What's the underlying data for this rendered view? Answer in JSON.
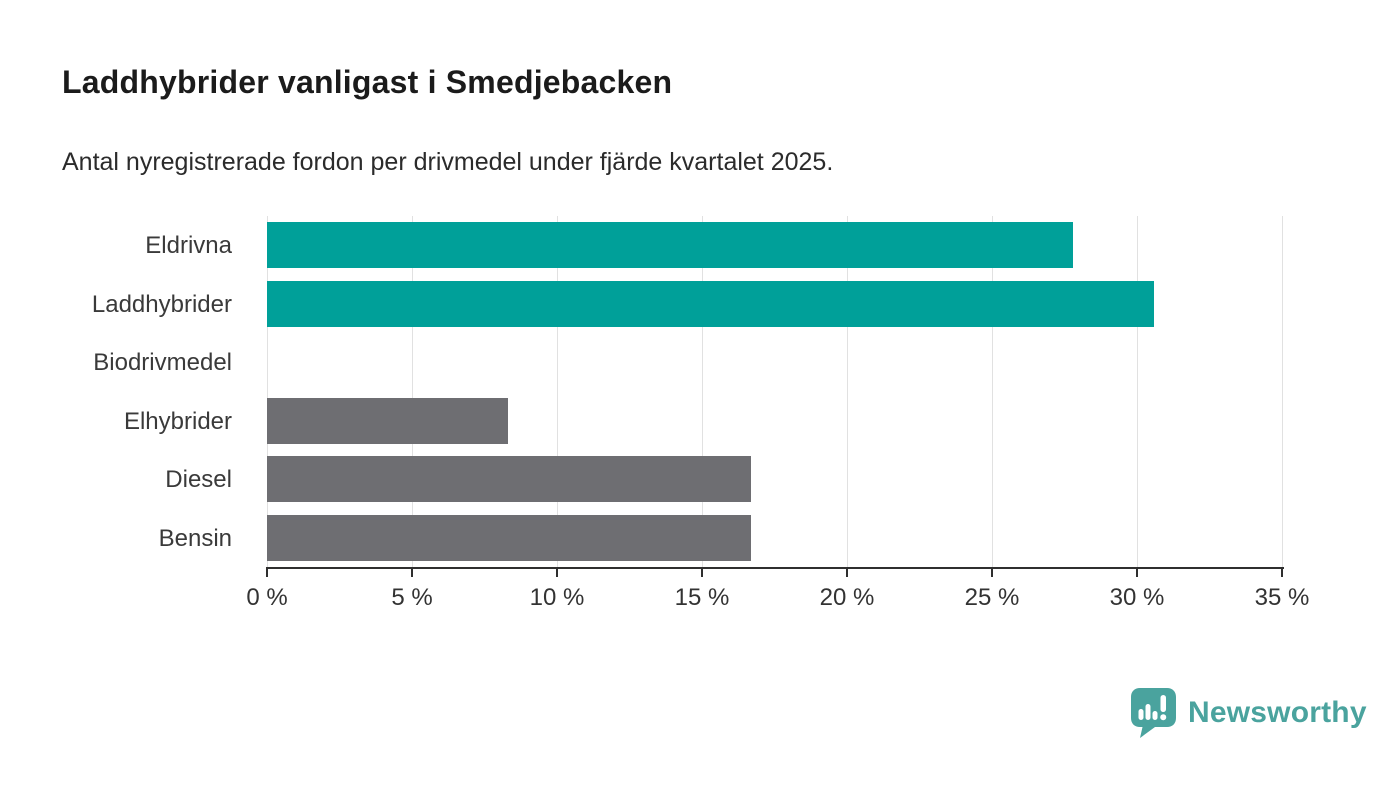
{
  "header": {
    "title": "Laddhybrider vanligast i Smedjebacken",
    "subtitle": "Antal nyregistrerade fordon per drivmedel under fjärde kvartalet 2025."
  },
  "chart_data": {
    "type": "bar",
    "orientation": "horizontal",
    "title": "Laddhybrider vanligast i Smedjebacken",
    "subtitle": "Antal nyregistrerade fordon per drivmedel under fjärde kvartalet 2025.",
    "categories": [
      "Eldrivna",
      "Laddhybrider",
      "Biodrivmedel",
      "Elhybrider",
      "Diesel",
      "Bensin"
    ],
    "values": [
      27.8,
      30.6,
      0,
      8.3,
      16.7,
      16.7
    ],
    "unit": "%",
    "xlabel": "",
    "ylabel": "",
    "xlim": [
      0,
      35
    ],
    "x_tick_values": [
      0,
      5,
      10,
      15,
      20,
      25,
      30,
      35
    ],
    "x_tick_labels": [
      "0 %",
      "5 %",
      "10 %",
      "15 %",
      "20 %",
      "25 %",
      "30 %",
      "35 %"
    ],
    "grid": true,
    "legend": false,
    "bar_colors": [
      "#00a099",
      "#00a099",
      "#6e6e72",
      "#6e6e72",
      "#6e6e72",
      "#6e6e72"
    ],
    "highlight_color": "#00a099",
    "default_color": "#6e6e72",
    "gridline_color": "#e1e1e1",
    "axis_color": "#2f2f2f",
    "label_color": "#3a3a3a"
  },
  "branding": {
    "logo_text": "Newsworthy",
    "logo_color": "#4aa39e",
    "logo_icon": "newsworthy-pin-barchart-icon"
  }
}
